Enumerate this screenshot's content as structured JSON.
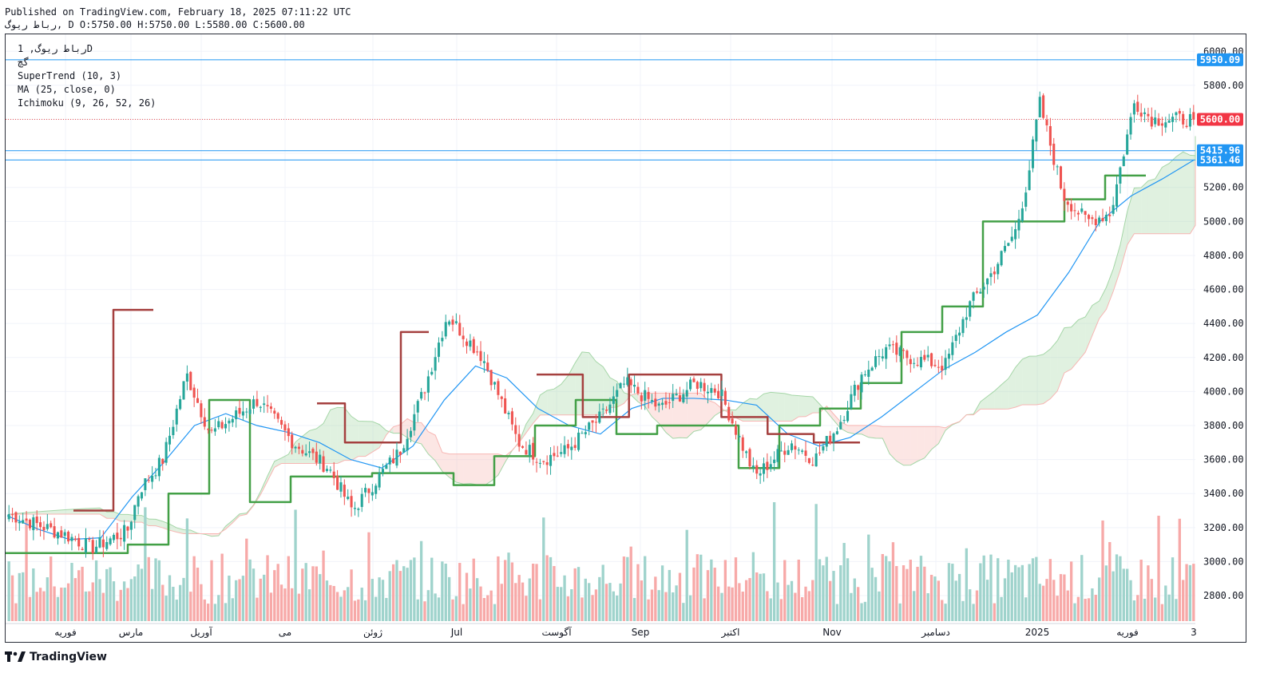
{
  "header": {
    "published": "Published on TradingView.com, February 18, 2025 07:11:22 UTC",
    "symbol_short": "رباط ريوگ",
    "ohlc_text": "D O:5750.00 H:5750.00 L:5580.00 C:5600.00"
  },
  "legend": {
    "symbol_line": "رباط ريوگ, 1D",
    "exchange": "گچ",
    "indicators": [
      "SuperTrend (10, 3)",
      "MA (25, close, 0)",
      "Ichimoku (9, 26, 52, 26)"
    ]
  },
  "branding": {
    "logo_text": "TradingView"
  },
  "chart_data": {
    "type": "candlestick",
    "ylim": [
      2650,
      6100
    ],
    "y_ticks": [
      2800,
      3000,
      3200,
      3400,
      3600,
      3800,
      4000,
      4200,
      4400,
      4600,
      4800,
      5000,
      5200,
      5400,
      5600,
      5800,
      6000
    ],
    "x_labels": [
      "فوریه",
      "مارس",
      "آوریل",
      "می",
      "ژوئن",
      "Jul",
      "آگوست",
      "Sep",
      "اکتبر",
      "Nov",
      "دسامبر",
      "2025",
      "فوریه",
      "3"
    ],
    "price_labels": [
      {
        "value": 5950.09,
        "text": "5950.09",
        "color": "#2196f3"
      },
      {
        "value": 5600.0,
        "text": "5600.00",
        "color": "#f23645"
      },
      {
        "value": 5415.96,
        "text": "5415.96",
        "color": "#2196f3"
      },
      {
        "value": 5361.46,
        "text": "5361.46",
        "color": "#2196f3"
      }
    ],
    "horizontal_lines": [
      5950.09,
      5415.96,
      5361.46
    ],
    "last_price": 5600.0,
    "path_x": [
      0,
      0.05,
      0.07,
      0.1,
      0.11,
      0.13,
      0.15,
      0.17,
      0.19,
      0.21,
      0.24,
      0.27,
      0.29,
      0.31,
      0.33,
      0.35,
      0.37,
      0.4,
      0.43,
      0.45,
      0.47,
      0.5,
      0.52,
      0.55,
      0.58,
      0.6,
      0.63,
      0.66,
      0.68,
      0.7,
      0.72,
      0.74,
      0.76,
      0.79,
      0.81,
      0.83,
      0.85,
      0.86,
      0.87,
      0.89,
      0.91,
      0.93,
      0.95,
      0.965
    ],
    "path_y": [
      3280,
      3150,
      3080,
      3180,
      3420,
      3600,
      4100,
      3750,
      3850,
      3950,
      3700,
      3550,
      3300,
      3480,
      3650,
      4000,
      4450,
      4200,
      3700,
      3600,
      3650,
      3850,
      4050,
      3900,
      4050,
      4000,
      3500,
      3700,
      3600,
      3800,
      4100,
      4250,
      4200,
      4150,
      4500,
      4700,
      4950,
      5250,
      5700,
      5150,
      5000,
      5050,
      5700,
      5600
    ],
    "ma_y": [
      3270,
      3190,
      3130,
      3140,
      3380,
      3580,
      3800,
      3870,
      3800,
      3760,
      3700,
      3600,
      3550,
      3680,
      3950,
      4150,
      4080,
      3900,
      3800,
      3750,
      3900,
      3960,
      3960,
      3950,
      3920,
      3750,
      3680,
      3730,
      3850,
      3990,
      4130,
      4230,
      4350,
      4450,
      4700,
      5000,
      5150,
      5250,
      5360
    ],
    "supertrend_up_y": [
      3050,
      3050,
      3050,
      3100,
      3400,
      3950,
      3350,
      3500,
      3500,
      3520,
      3520,
      3450,
      3620,
      3800,
      3950,
      3750,
      3800,
      3800,
      3550,
      3800,
      3900,
      4050,
      4350,
      4500,
      5000,
      5000,
      5130,
      5270
    ],
    "supertrend_down_y": [
      3300,
      3300,
      4480,
      4480,
      3930,
      3700,
      3700,
      4350,
      4100,
      3850,
      4100,
      4100,
      3850,
      3750,
      3700
    ],
    "volume_max": 3500
  },
  "colors": {
    "up": "#26a69a",
    "down": "#ef5350",
    "vol_up": "#9fd3cc",
    "vol_down": "#f7a9a8",
    "ma": "#2196f3",
    "st_up": "#43a047",
    "st_down": "#a5403f",
    "cloud_up": "#a5d6a7",
    "cloud_down": "#f7b6b3",
    "axis": "#131722",
    "grid": "#f0f3fa"
  }
}
